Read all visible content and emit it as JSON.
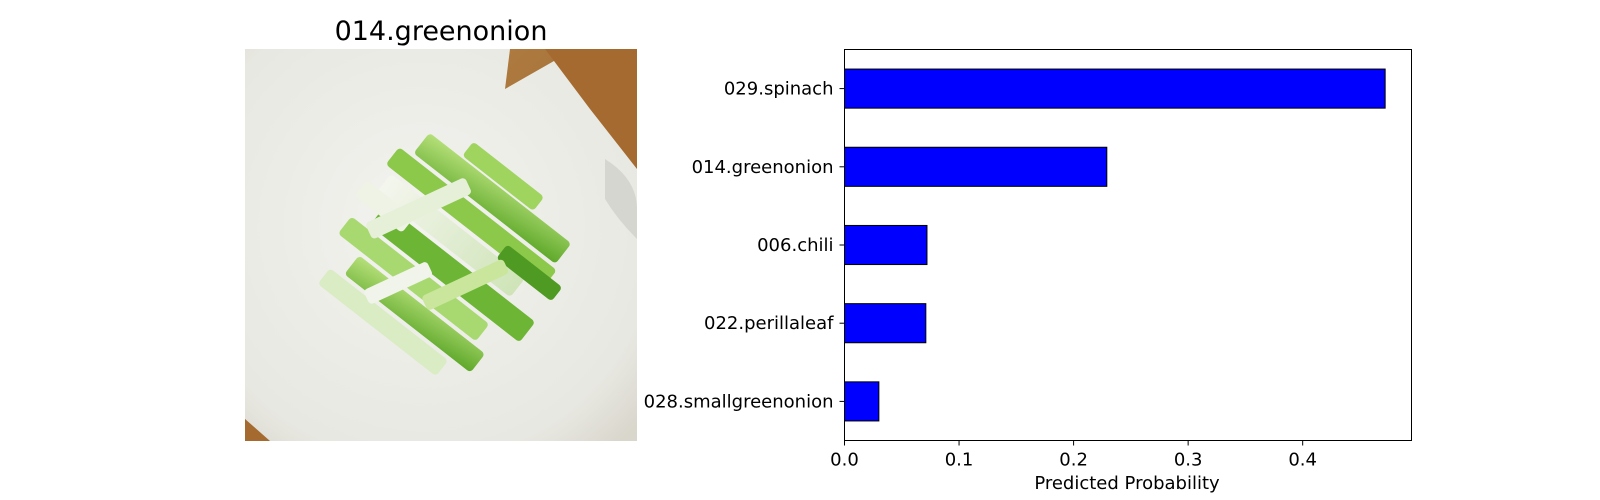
{
  "image_panel": {
    "title": "014.greenonion"
  },
  "chart_data": {
    "type": "bar",
    "orientation": "horizontal",
    "categories": [
      "029.spinach",
      "014.greenonion",
      "006.chili",
      "022.perillaleaf",
      "028.smallgreenonion"
    ],
    "values": [
      0.472,
      0.229,
      0.072,
      0.071,
      0.03
    ],
    "xlabel": "Predicted Probability",
    "ylabel": "",
    "xlim": [
      0,
      0.495
    ],
    "xticks": [
      0.0,
      0.1,
      0.2,
      0.3,
      0.4
    ],
    "xtick_labels": [
      "0.0",
      "0.1",
      "0.2",
      "0.3",
      "0.4"
    ],
    "bar_color": "#0000ff",
    "bar_edge_color": "#000000",
    "grid": false
  }
}
